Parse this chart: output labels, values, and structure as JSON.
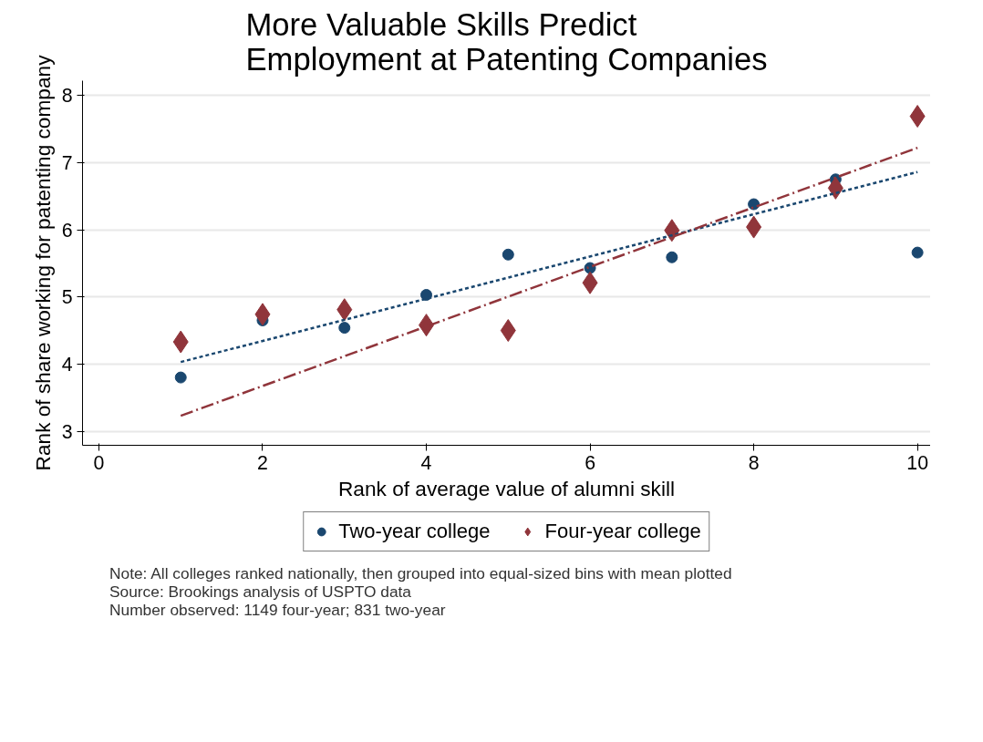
{
  "chart_data": {
    "type": "scatter",
    "title": "More Valuable Skills Predict\nEmployment at Patenting Companies",
    "xlabel": "Rank of average value of alumni skill",
    "ylabel": "Rank of share working for patenting company",
    "xlim": [
      -0.2,
      10.16
    ],
    "xticks": [
      0,
      2,
      4,
      6,
      8,
      10
    ],
    "ylim": [
      2.79,
      8.22
    ],
    "yticks": [
      3,
      4,
      5,
      6,
      7,
      8
    ],
    "grid": "y",
    "legend": "bottom",
    "series": [
      {
        "name": "Two-year college",
        "color": "#1a476f",
        "marker": "circle",
        "x": [
          1,
          2,
          3,
          4,
          5,
          6,
          7,
          8,
          9,
          10
        ],
        "values": [
          3.8,
          4.65,
          4.54,
          5.03,
          5.63,
          5.43,
          5.59,
          6.38,
          6.75,
          5.66
        ]
      },
      {
        "name": "Four-year college",
        "color": "#90353b",
        "marker": "diamond",
        "x": [
          1,
          2,
          3,
          4,
          5,
          6,
          7,
          8,
          9,
          10
        ],
        "values": [
          4.33,
          4.74,
          4.81,
          4.58,
          4.5,
          5.21,
          5.99,
          6.04,
          6.62,
          7.69
        ]
      },
      {
        "type": "line",
        "color": "#1a476f",
        "line_style": "dotted",
        "x": [
          1,
          10
        ],
        "values": [
          4.03,
          6.86
        ]
      },
      {
        "type": "line",
        "color": "#90353b",
        "line_style": "dashed",
        "x": [
          1,
          10
        ],
        "values": [
          3.23,
          7.22
        ]
      }
    ],
    "annotations": [
      "Note: All colleges ranked nationally, then grouped into equal-sized bins with mean plotted",
      "Source: Brookings analysis of USPTO data",
      "Number observed: 1149 four-year; 831 two-year"
    ]
  }
}
